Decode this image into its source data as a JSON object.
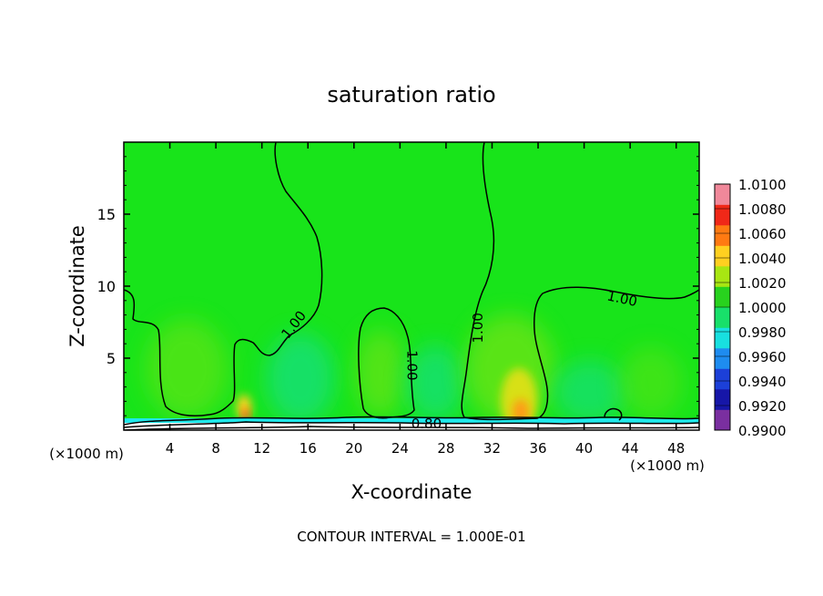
{
  "chart_data": {
    "type": "heatmap",
    "title": "saturation ratio",
    "xlabel": "X-coordinate",
    "ylabel": "Z-coordinate",
    "x_unit_left": "(×1000 m)",
    "x_unit_right": "(×1000 m)",
    "xlim": [
      0,
      50
    ],
    "ylim": [
      0,
      20
    ],
    "x_ticks": [
      4,
      8,
      12,
      16,
      20,
      24,
      28,
      32,
      36,
      40,
      44,
      48
    ],
    "y_ticks": [
      5,
      10,
      15
    ],
    "colorbar": {
      "levels": [
        0.99,
        0.992,
        0.994,
        0.996,
        0.998,
        1.0,
        1.002,
        1.004,
        1.006,
        1.008,
        1.01
      ],
      "labels": [
        "0.9900",
        "0.9920",
        "0.9940",
        "0.9960",
        "0.9980",
        "1.0000",
        "1.0020",
        "1.0040",
        "1.0060",
        "1.0080",
        "1.0100"
      ],
      "colors": [
        "#7a2fa0",
        "#1616a8",
        "#1c40d8",
        "#1e8cf0",
        "#18e0e0",
        "#18e06a",
        "#28d21e",
        "#a8e612",
        "#ffd020",
        "#ff7a12",
        "#f02818",
        "#f0889a"
      ]
    },
    "contour_labels": [
      {
        "text": "1.00",
        "x": 14.8,
        "y": 7.3,
        "angle": -52
      },
      {
        "text": "1.00",
        "x": 25.0,
        "y": 4.5,
        "angle": 90
      },
      {
        "text": "1.00",
        "x": 30.8,
        "y": 7.1,
        "angle": -90
      },
      {
        "text": "1.00",
        "x": 43.3,
        "y": 9.1,
        "angle": 12
      },
      {
        "text": "0.80",
        "x": 26.3,
        "y": 0.4,
        "angle": 0
      }
    ],
    "contour_interval_text": "CONTOUR INTERVAL = 1.000E-01"
  }
}
